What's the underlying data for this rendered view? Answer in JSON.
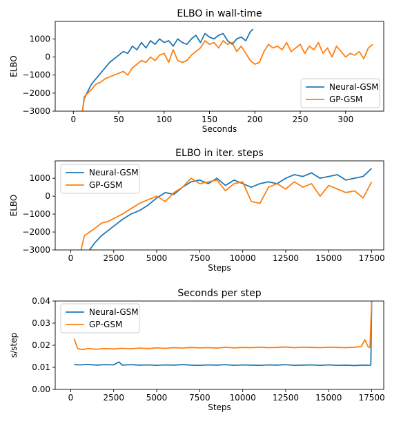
{
  "chart_data": [
    {
      "type": "line",
      "title": "ELBO in wall-time",
      "xlabel": "Seconds",
      "ylabel": "ELBO",
      "xlim": [
        -20,
        342
      ],
      "ylim": [
        -3000,
        1970
      ],
      "xticks": [
        0,
        50,
        100,
        150,
        200,
        250,
        300
      ],
      "xtick_labels": [
        "0",
        "50",
        "100",
        "150",
        "200",
        "250",
        "300"
      ],
      "yticks": [
        -3000,
        -2000,
        -1000,
        0,
        1000
      ],
      "ytick_labels": [
        "−3000",
        "−2000",
        "−1000",
        "0",
        "1000"
      ],
      "grid": false,
      "legend_position": "lower right",
      "series": [
        {
          "name": "Neural-GSM",
          "color": "#1f77b4",
          "x": [
            10,
            12,
            16,
            20,
            25,
            30,
            35,
            40,
            45,
            50,
            55,
            60,
            65,
            70,
            75,
            80,
            85,
            90,
            95,
            100,
            105,
            110,
            115,
            120,
            125,
            130,
            135,
            140,
            145,
            150,
            155,
            160,
            165,
            170,
            175,
            180,
            185,
            190,
            195,
            198
          ],
          "y": [
            -3000,
            -2300,
            -1900,
            -1500,
            -1200,
            -900,
            -600,
            -300,
            -100,
            100,
            300,
            200,
            600,
            400,
            800,
            500,
            900,
            700,
            1000,
            800,
            900,
            600,
            1000,
            800,
            700,
            1000,
            1200,
            800,
            1300,
            1100,
            1000,
            1200,
            1300,
            900,
            700,
            1000,
            1100,
            900,
            1400,
            1550
          ]
        },
        {
          "name": "GP-GSM",
          "color": "#ff7f0e",
          "x": [
            10,
            12,
            16,
            20,
            25,
            30,
            35,
            40,
            45,
            50,
            55,
            60,
            65,
            70,
            75,
            80,
            85,
            90,
            95,
            100,
            105,
            110,
            115,
            120,
            125,
            130,
            135,
            140,
            145,
            150,
            155,
            160,
            165,
            170,
            175,
            180,
            185,
            190,
            195,
            200,
            205,
            210,
            215,
            220,
            225,
            230,
            235,
            240,
            245,
            250,
            255,
            260,
            265,
            270,
            275,
            280,
            285,
            290,
            295,
            300,
            305,
            310,
            315,
            320,
            325,
            330
          ],
          "y": [
            -3000,
            -2200,
            -2000,
            -1800,
            -1500,
            -1400,
            -1200,
            -1100,
            -1000,
            -900,
            -800,
            -1000,
            -600,
            -400,
            -200,
            -300,
            0,
            -200,
            100,
            200,
            -300,
            400,
            -200,
            -300,
            -200,
            100,
            300,
            500,
            900,
            700,
            800,
            500,
            900,
            700,
            800,
            300,
            600,
            200,
            -200,
            -400,
            -300,
            300,
            700,
            500,
            600,
            400,
            800,
            300,
            500,
            700,
            200,
            600,
            400,
            800,
            200,
            500,
            0,
            600,
            300,
            0,
            200,
            100,
            300,
            -100,
            500,
            700
          ]
        }
      ]
    },
    {
      "type": "line",
      "title": "ELBO in iter. steps",
      "xlabel": "Steps",
      "ylabel": "ELBO",
      "xlim": [
        -900,
        18200
      ],
      "ylim": [
        -3000,
        1970
      ],
      "xticks": [
        0,
        2500,
        5000,
        7500,
        10000,
        12500,
        15000,
        17500
      ],
      "xtick_labels": [
        "0",
        "2500",
        "5000",
        "7500",
        "10000",
        "12500",
        "15000",
        "17500"
      ],
      "yticks": [
        -3000,
        -2000,
        -1000,
        0,
        1000
      ],
      "ytick_labels": [
        "−3000",
        "−2000",
        "−1000",
        "0",
        "1000"
      ],
      "grid": false,
      "legend_position": "upper left",
      "series": [
        {
          "name": "Neural-GSM",
          "color": "#1f77b4",
          "x": [
            1100,
            1400,
            1800,
            2200,
            2600,
            3000,
            3500,
            4000,
            4500,
            5000,
            5500,
            6000,
            6500,
            7000,
            7500,
            8000,
            8500,
            9000,
            9500,
            10000,
            10500,
            11000,
            11500,
            12000,
            12500,
            13000,
            13500,
            14000,
            14500,
            15000,
            15500,
            16000,
            16500,
            17000,
            17500
          ],
          "y": [
            -3000,
            -2600,
            -2200,
            -1900,
            -1600,
            -1300,
            -1000,
            -800,
            -500,
            -100,
            200,
            100,
            500,
            800,
            900,
            700,
            1000,
            600,
            900,
            700,
            500,
            700,
            800,
            700,
            1000,
            1200,
            1100,
            1300,
            1000,
            1100,
            1200,
            900,
            1000,
            1100,
            1550
          ]
        },
        {
          "name": "GP-GSM",
          "color": "#ff7f0e",
          "x": [
            600,
            800,
            1100,
            1400,
            1800,
            2200,
            2600,
            3000,
            3500,
            4000,
            4500,
            5000,
            5500,
            6000,
            6500,
            7000,
            7500,
            8000,
            8500,
            9000,
            9500,
            10000,
            10500,
            11000,
            11500,
            12000,
            12500,
            13000,
            13500,
            14000,
            14500,
            15000,
            15500,
            16000,
            16500,
            17000,
            17500
          ],
          "y": [
            -3000,
            -2200,
            -2000,
            -1800,
            -1500,
            -1400,
            -1200,
            -1000,
            -700,
            -400,
            -200,
            0,
            -300,
            200,
            500,
            1000,
            700,
            800,
            900,
            300,
            700,
            800,
            -300,
            -400,
            500,
            700,
            400,
            800,
            500,
            700,
            0,
            600,
            400,
            200,
            300,
            -100,
            800
          ]
        }
      ]
    },
    {
      "type": "line",
      "title": "Seconds per step",
      "xlabel": "Steps",
      "ylabel": "s/step",
      "xlim": [
        -900,
        18200
      ],
      "ylim": [
        0,
        0.04
      ],
      "xticks": [
        0,
        2500,
        5000,
        7500,
        10000,
        12500,
        15000,
        17500
      ],
      "xtick_labels": [
        "0",
        "2500",
        "5000",
        "7500",
        "10000",
        "12500",
        "15000",
        "17500"
      ],
      "yticks": [
        0,
        0.01,
        0.02,
        0.03,
        0.04
      ],
      "ytick_labels": [
        "0.00",
        "0.01",
        "0.02",
        "0.03",
        "0.04"
      ],
      "grid": false,
      "legend_position": "upper left",
      "series": [
        {
          "name": "Neural-GSM",
          "color": "#1f77b4",
          "x": [
            200,
            500,
            1000,
            1500,
            2000,
            2500,
            2800,
            3000,
            3500,
            4000,
            4500,
            5000,
            5500,
            6000,
            6500,
            7000,
            7500,
            8000,
            8500,
            9000,
            9500,
            10000,
            10500,
            11000,
            11500,
            12000,
            12500,
            13000,
            13500,
            14000,
            14500,
            15000,
            15500,
            16000,
            16500,
            17000,
            17400,
            17450,
            17500
          ],
          "y": [
            0.0112,
            0.0111,
            0.0113,
            0.011,
            0.0112,
            0.0111,
            0.0124,
            0.011,
            0.0112,
            0.011,
            0.0111,
            0.0109,
            0.0111,
            0.011,
            0.0112,
            0.011,
            0.0109,
            0.0111,
            0.011,
            0.0112,
            0.0109,
            0.0111,
            0.011,
            0.0109,
            0.0111,
            0.011,
            0.0112,
            0.0109,
            0.011,
            0.0111,
            0.0109,
            0.0111,
            0.0109,
            0.011,
            0.0108,
            0.011,
            0.0109,
            0.0112,
            0.04
          ]
        },
        {
          "name": "GP-GSM",
          "color": "#ff7f0e",
          "x": [
            200,
            400,
            700,
            1000,
            1500,
            2000,
            2500,
            3000,
            3500,
            4000,
            4500,
            5000,
            5500,
            6000,
            6500,
            7000,
            7500,
            8000,
            8500,
            9000,
            9500,
            10000,
            10500,
            11000,
            11500,
            12000,
            12500,
            13000,
            13500,
            14000,
            14500,
            15000,
            15500,
            16000,
            16500,
            16900,
            17100,
            17300,
            17400,
            17500
          ],
          "y": [
            0.023,
            0.0185,
            0.018,
            0.0185,
            0.0182,
            0.0185,
            0.0183,
            0.0186,
            0.0184,
            0.0187,
            0.0185,
            0.0188,
            0.0186,
            0.0189,
            0.0187,
            0.019,
            0.0188,
            0.0189,
            0.0187,
            0.0191,
            0.0188,
            0.019,
            0.0189,
            0.0191,
            0.0189,
            0.019,
            0.0192,
            0.0189,
            0.0191,
            0.019,
            0.0189,
            0.0191,
            0.019,
            0.0189,
            0.0191,
            0.0194,
            0.0225,
            0.0192,
            0.019,
            0.04
          ]
        }
      ]
    }
  ]
}
